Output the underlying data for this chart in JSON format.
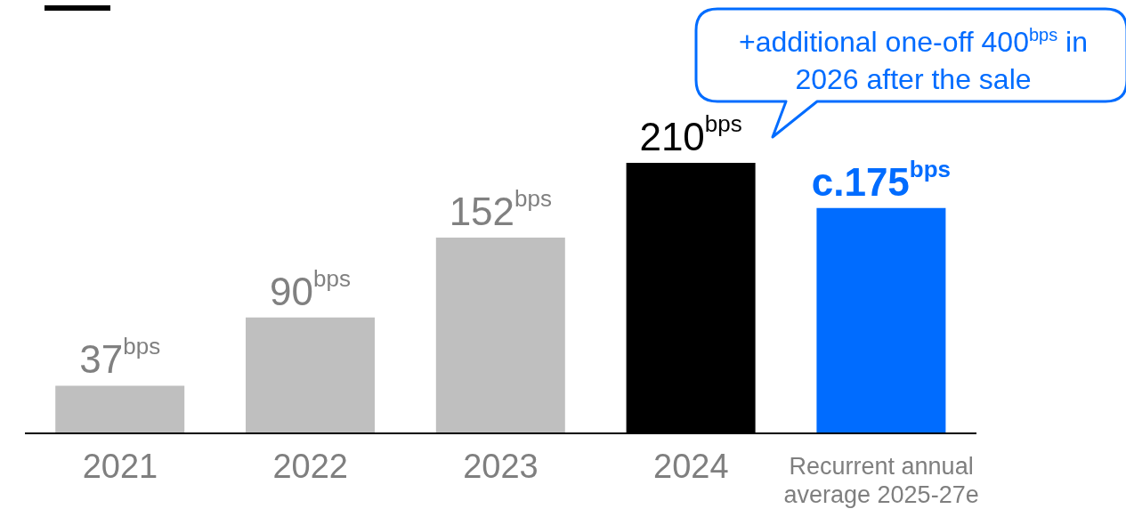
{
  "chart_data": {
    "type": "bar",
    "categories": [
      "2021",
      "2022",
      "2023",
      "2024",
      "Recurrent annual average 2025-27e"
    ],
    "values": [
      37,
      90,
      152,
      210,
      175
    ],
    "colors": [
      "#bfbfbf",
      "#bfbfbf",
      "#bfbfbf",
      "#000000",
      "#006cff"
    ],
    "value_labels": [
      "37$^{bps}$",
      "90$^{bps}$",
      "152$^{bps}$",
      "210$^{bps}$",
      "c.175$^{bps}$"
    ],
    "annotations": [
      "+additional one-off 400$^{bps}$ in 2026 after the sale"
    ],
    "grid": false,
    "legend": false
  }
}
